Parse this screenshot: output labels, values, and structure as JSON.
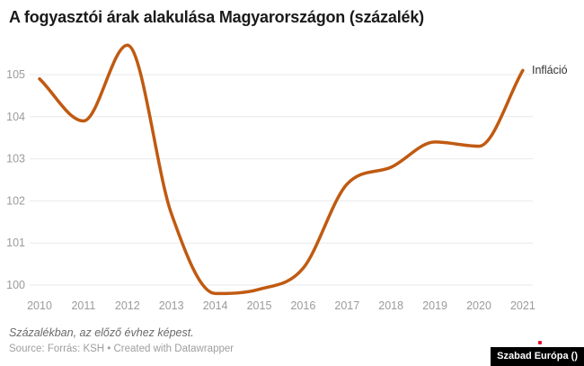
{
  "title": "A fogyasztói árak alakulása Magyarországon (százalék)",
  "legend": {
    "label": "Infláció"
  },
  "footer": {
    "note": "Százalékban, az előző évhez képest.",
    "source": "Source: Forrás: KSH • Created with Datawrapper"
  },
  "badge": {
    "text": "Szabad Európa ()"
  },
  "colors": {
    "line": "#c05a11",
    "grid": "#e9e9e9",
    "tick": "#9b9b9b",
    "title": "#1a1a1a",
    "legend": "#333333",
    "note": "#696969",
    "source": "#9e9e9e",
    "badge_bg": "#000000",
    "badge_text": "#ffffff",
    "accent_red": "#e8112d"
  },
  "chart_data": {
    "type": "line",
    "title": "A fogyasztói árak alakulása Magyarországon (százalék)",
    "xlabel": "",
    "ylabel": "",
    "x": [
      2010,
      2011,
      2012,
      2013,
      2014,
      2015,
      2016,
      2017,
      2018,
      2019,
      2020,
      2021
    ],
    "series": [
      {
        "name": "Infláció",
        "values": [
          104.9,
          103.9,
          105.7,
          101.7,
          99.8,
          99.9,
          100.4,
          102.4,
          102.8,
          103.4,
          103.3,
          105.1
        ]
      }
    ],
    "yticks": [
      100,
      101,
      102,
      103,
      104,
      105
    ],
    "ylim": [
      99.6,
      105.8
    ],
    "grid": true,
    "legend_position": "end-of-line"
  }
}
